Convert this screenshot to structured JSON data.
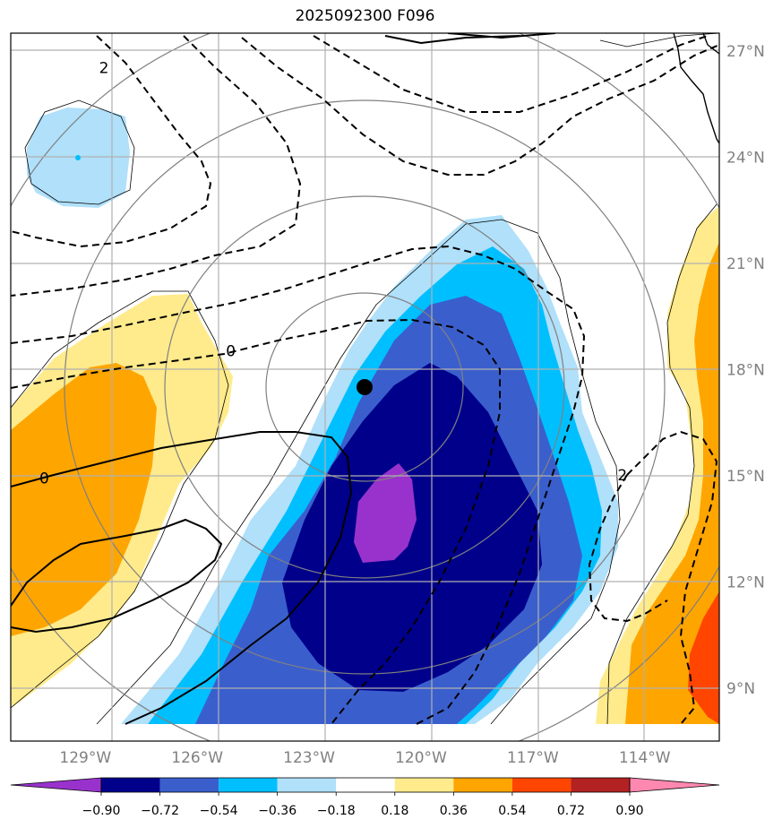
{
  "title": "2025092300 F096",
  "chart_data": {
    "type": "heatmap",
    "title": "2025092300 F096",
    "projection": "lat-lon",
    "lon_range": [
      -131,
      -112
    ],
    "lat_range": [
      7.5,
      27.5
    ],
    "lon_ticks": [
      {
        "value": -129,
        "label": "129°W"
      },
      {
        "value": -126,
        "label": "126°W"
      },
      {
        "value": -123,
        "label": "123°W"
      },
      {
        "value": -120,
        "label": "120°W"
      },
      {
        "value": -117,
        "label": "117°W"
      },
      {
        "value": -114,
        "label": "114°W"
      }
    ],
    "lat_ticks": [
      {
        "value": 9,
        "label": "9°N"
      },
      {
        "value": 12,
        "label": "12°N"
      },
      {
        "value": 15,
        "label": "15°N"
      },
      {
        "value": 18,
        "label": "18°N"
      },
      {
        "value": 21,
        "label": "21°N"
      },
      {
        "value": 24,
        "label": "24°N"
      },
      {
        "value": 27,
        "label": "27°N"
      }
    ],
    "grid": true,
    "storm_center": {
      "lon": -121.9,
      "lat": 17.5
    },
    "contour_labels": [
      {
        "text": "2",
        "lon": -128.5,
        "lat": 26.5
      },
      {
        "text": "0",
        "lon": -125.1,
        "lat": 18.5
      },
      {
        "text": "0",
        "lon": -130.1,
        "lat": 14.9
      },
      {
        "text": "2",
        "lon": -114.6,
        "lat": 15.0
      }
    ],
    "colorbar": {
      "levels": [
        -0.9,
        -0.72,
        -0.54,
        -0.36,
        -0.18,
        0.18,
        0.36,
        0.54,
        0.72,
        0.9
      ],
      "tick_labels": [
        "−0.90",
        "−0.72",
        "−0.54",
        "−0.36",
        "−0.18",
        "0.18",
        "0.36",
        "0.54",
        "0.72",
        "0.90"
      ],
      "colors": [
        "#9932cc",
        "#00008b",
        "#3a5fcd",
        "#00bfff",
        "#b0e0fa",
        "#ffffff",
        "#ffeb8c",
        "#ffa500",
        "#ff4500",
        "#b22222",
        "#ff88b0"
      ],
      "extend": "both"
    }
  }
}
